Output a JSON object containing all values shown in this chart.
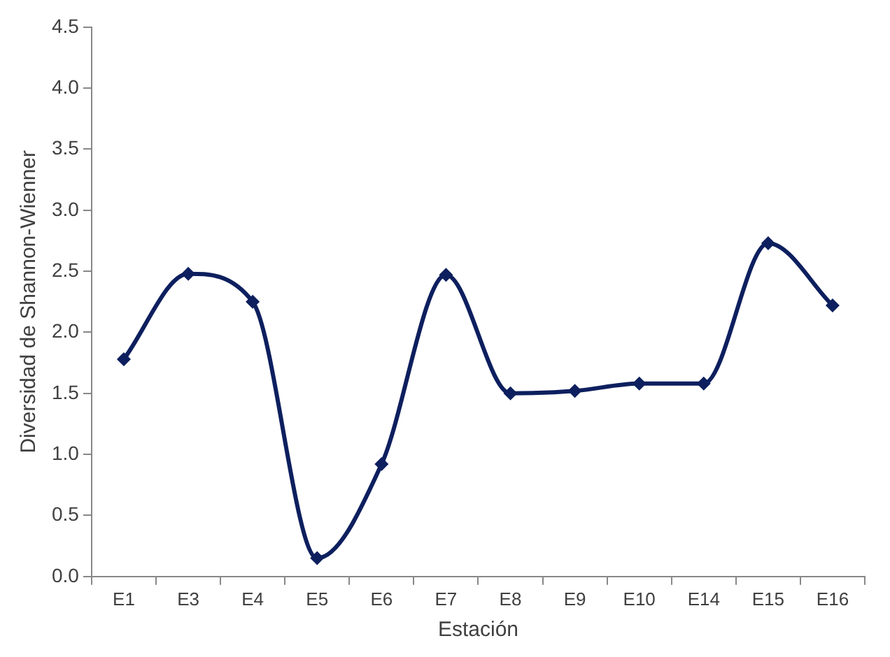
{
  "chart_data": {
    "type": "line",
    "xlabel": "Estación",
    "ylabel": "Diversidad de Shannon-Wienner",
    "categories": [
      "E1",
      "E3",
      "E4",
      "E5",
      "E6",
      "E7",
      "E8",
      "E9",
      "E10",
      "E14",
      "E15",
      "E16"
    ],
    "series": [
      {
        "color": "#0d1f5e",
        "values": [
          1.78,
          2.48,
          2.25,
          0.15,
          0.92,
          2.47,
          1.5,
          1.52,
          1.58,
          1.58,
          2.73,
          2.22
        ]
      }
    ],
    "ylim": [
      0,
      4.5
    ],
    "yticks": [
      {
        "value": 0,
        "label": "0.0"
      },
      {
        "value": 0.5,
        "label": "0.5"
      },
      {
        "value": 1,
        "label": "1.0"
      },
      {
        "value": 1.5,
        "label": "1.5"
      },
      {
        "value": 2,
        "label": "2.0"
      },
      {
        "value": 2.5,
        "label": "2.5"
      },
      {
        "value": 3,
        "label": "3.0"
      },
      {
        "value": 3.5,
        "label": "3.5"
      },
      {
        "value": 4,
        "label": "4.0"
      },
      {
        "value": 4.5,
        "label": "4.5"
      }
    ],
    "grid": false,
    "legend": false,
    "marker": "diamond",
    "line_style": "solid"
  }
}
